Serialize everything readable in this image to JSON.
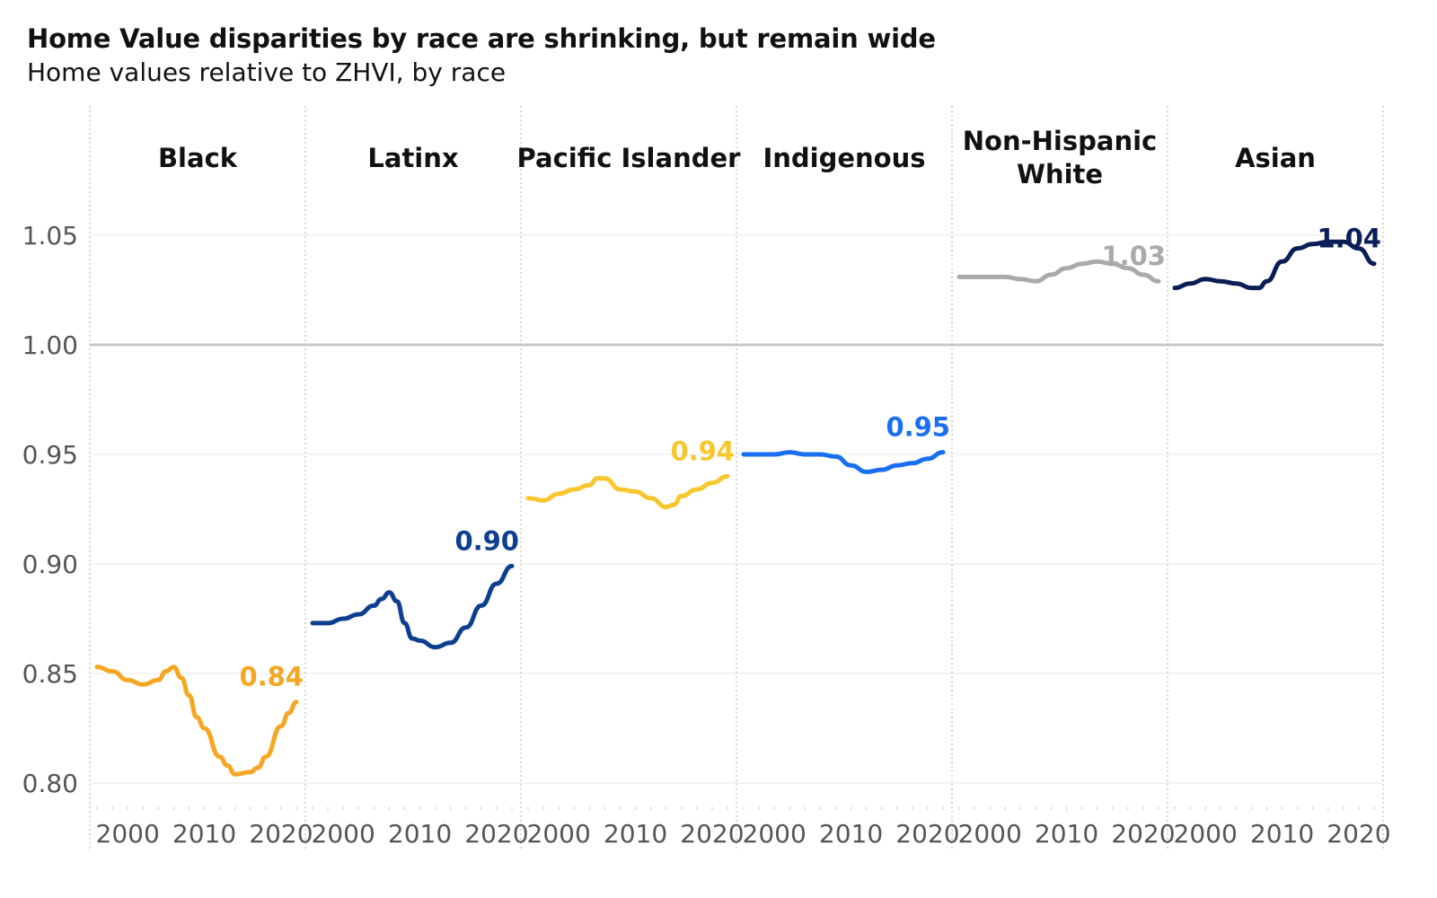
{
  "header": {
    "title": "Home Value disparities by race are shrinking, but remain wide",
    "subtitle": "Home values relative to ZHVI, by race"
  },
  "chart_data": {
    "type": "line",
    "title": "Home Value disparities by race are shrinking, but remain wide",
    "subtitle": "Home values relative to ZHVI, by race",
    "xlabel": "",
    "ylabel": "",
    "facet": "race",
    "xlim": [
      1996,
      2022
    ],
    "ylim": [
      0.79,
      1.1
    ],
    "y_ticks": [
      0.8,
      0.85,
      0.9,
      0.95,
      1.0,
      1.05
    ],
    "y_tick_labels": [
      "0.80",
      "0.85",
      "0.90",
      "0.95",
      "1.00",
      "1.05"
    ],
    "x_ticks": [
      2000,
      2010,
      2020
    ],
    "x_tick_labels": [
      "2000",
      "2010",
      "2020"
    ],
    "reference_line": 1.0,
    "grid": "horizontal",
    "series": [
      {
        "name": "Black",
        "title_lines": [
          "Black"
        ],
        "color": "#F5A623",
        "end_label": "0.84",
        "x": [
          1996,
          1998,
          2000,
          2002,
          2004,
          2005,
          2006,
          2007,
          2008,
          2009,
          2010,
          2012,
          2013,
          2014,
          2016,
          2017,
          2018,
          2020,
          2021,
          2022
        ],
        "values": [
          0.853,
          0.851,
          0.847,
          0.845,
          0.847,
          0.851,
          0.853,
          0.848,
          0.84,
          0.83,
          0.825,
          0.812,
          0.808,
          0.804,
          0.805,
          0.807,
          0.812,
          0.826,
          0.832,
          0.837
        ]
      },
      {
        "name": "Latinx",
        "title_lines": [
          "Latinx"
        ],
        "color": "#0E3F8F",
        "end_label": "0.90",
        "x": [
          1996,
          1998,
          2000,
          2002,
          2004,
          2005,
          2006,
          2007,
          2008,
          2009,
          2010,
          2012,
          2014,
          2016,
          2018,
          2020,
          2022
        ],
        "values": [
          0.873,
          0.873,
          0.875,
          0.877,
          0.881,
          0.884,
          0.887,
          0.883,
          0.873,
          0.866,
          0.865,
          0.862,
          0.864,
          0.871,
          0.881,
          0.891,
          0.899
        ]
      },
      {
        "name": "Pacific Islander",
        "title_lines": [
          "Pacific Islander"
        ],
        "color": "#F8C62D",
        "end_label": "0.94",
        "x": [
          1996,
          1998,
          2000,
          2002,
          2004,
          2005,
          2006,
          2008,
          2010,
          2012,
          2014,
          2015,
          2016,
          2018,
          2020,
          2022
        ],
        "values": [
          0.93,
          0.929,
          0.932,
          0.934,
          0.936,
          0.939,
          0.939,
          0.934,
          0.933,
          0.93,
          0.926,
          0.927,
          0.931,
          0.934,
          0.937,
          0.94
        ]
      },
      {
        "name": "Indigenous",
        "title_lines": [
          "Indigenous"
        ],
        "color": "#1A6FF0",
        "end_label": "0.95",
        "x": [
          1996,
          1998,
          2000,
          2002,
          2004,
          2006,
          2008,
          2010,
          2012,
          2014,
          2016,
          2018,
          2020,
          2022
        ],
        "values": [
          0.95,
          0.95,
          0.95,
          0.951,
          0.95,
          0.95,
          0.949,
          0.945,
          0.942,
          0.943,
          0.945,
          0.946,
          0.948,
          0.951
        ]
      },
      {
        "name": "Non-Hispanic White",
        "title_lines": [
          "Non-Hispanic",
          "White"
        ],
        "color": "#A9A9AE",
        "end_label": "1.03",
        "x": [
          1996,
          1998,
          2000,
          2002,
          2004,
          2006,
          2008,
          2010,
          2012,
          2014,
          2016,
          2018,
          2020,
          2022
        ],
        "values": [
          1.031,
          1.031,
          1.031,
          1.031,
          1.03,
          1.029,
          1.032,
          1.035,
          1.037,
          1.038,
          1.037,
          1.035,
          1.032,
          1.029
        ]
      },
      {
        "name": "Asian",
        "title_lines": [
          "Asian"
        ],
        "color": "#0A1E57",
        "end_label": "1.04",
        "x": [
          1996,
          1998,
          2000,
          2002,
          2004,
          2006,
          2007,
          2008,
          2010,
          2012,
          2014,
          2016,
          2018,
          2020,
          2022
        ],
        "values": [
          1.026,
          1.028,
          1.03,
          1.029,
          1.028,
          1.026,
          1.026,
          1.029,
          1.038,
          1.044,
          1.046,
          1.047,
          1.047,
          1.044,
          1.037
        ]
      }
    ]
  }
}
